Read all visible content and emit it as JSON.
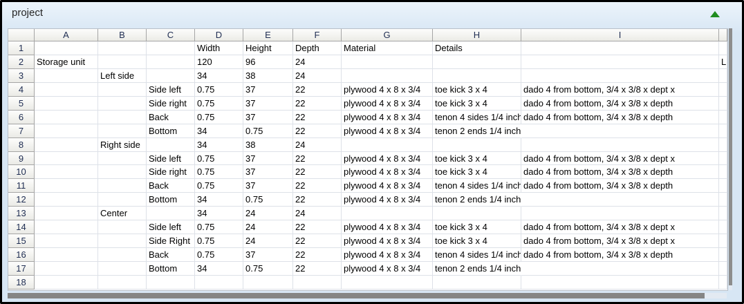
{
  "panel": {
    "title": "project",
    "collapse_icon": "triangle-up",
    "colors": {
      "panel_background": "#d7e6f4",
      "collapse_green": "#1f8c1f",
      "frame_black": "#000000",
      "grid_line": "#dde1e8",
      "header_border": "#a5a5a5",
      "header_text": "#1f2d52",
      "cell_text": "#000000",
      "scrollbar_thumb": "#858585"
    }
  },
  "spreadsheet": {
    "column_headers": [
      "A",
      "B",
      "C",
      "D",
      "E",
      "F",
      "G",
      "H",
      "I"
    ],
    "clipped_last_column": "J",
    "rows": [
      {
        "n": "1",
        "cells": [
          "",
          "",
          "",
          "Width",
          "Height",
          "Depth",
          "Material",
          "Details",
          "",
          ""
        ]
      },
      {
        "n": "2",
        "cells": [
          "Storage unit",
          "",
          "",
          "120",
          "96",
          "24",
          "",
          "",
          "",
          "L"
        ]
      },
      {
        "n": "3",
        "cells": [
          "",
          "Left side",
          "",
          "34",
          "38",
          "24",
          "",
          "",
          "",
          ""
        ]
      },
      {
        "n": "4",
        "cells": [
          "",
          "",
          "Side left",
          "0.75",
          "37",
          "22",
          "plywood 4 x 8 x 3/4",
          "toe kick 3 x 4",
          "dado 4 from bottom, 3/4 x 3/8 x dept x",
          ""
        ]
      },
      {
        "n": "5",
        "cells": [
          "",
          "",
          "Side right",
          "0.75",
          "37",
          "22",
          "plywood 4 x 8 x 3/4",
          "toe kick 3 x 4",
          "dado 4 from bottom, 3/4 x 3/8 x depth",
          ""
        ]
      },
      {
        "n": "6",
        "cells": [
          "",
          "",
          "Back",
          "0.75",
          "37",
          "22",
          "plywood 4 x 8 x 3/4",
          "tenon 4 sides 1/4 inch",
          "dado 4 from bottom, 3/4 x 3/8 x depth",
          ""
        ]
      },
      {
        "n": "7",
        "cells": [
          "",
          "",
          "Bottom",
          "34",
          "0.75",
          "22",
          "plywood 4 x 8 x 3/4",
          "tenon 2 ends 1/4 inch",
          "",
          ""
        ]
      },
      {
        "n": "8",
        "cells": [
          "",
          "Right side",
          "",
          "34",
          "38",
          "24",
          "",
          "",
          "",
          ""
        ]
      },
      {
        "n": "9",
        "cells": [
          "",
          "",
          "Side left",
          "0.75",
          "37",
          "22",
          "plywood 4 x 8 x 3/4",
          "toe kick 3 x 4",
          "dado 4 from bottom, 3/4 x 3/8 x dept x",
          ""
        ]
      },
      {
        "n": "10",
        "cells": [
          "",
          "",
          "Side right",
          "0.75",
          "37",
          "22",
          "plywood 4 x 8 x 3/4",
          "toe kick 3 x 4",
          "dado 4 from bottom, 3/4 x 3/8 x depth",
          ""
        ]
      },
      {
        "n": "11",
        "cells": [
          "",
          "",
          "Back",
          "0.75",
          "37",
          "22",
          "plywood 4 x 8 x 3/4",
          "tenon 4 sides 1/4 inch",
          "dado 4 from bottom, 3/4 x 3/8 x depth",
          ""
        ]
      },
      {
        "n": "12",
        "cells": [
          "",
          "",
          "Bottom",
          "34",
          "0.75",
          "22",
          "plywood 4 x 8 x 3/4",
          "tenon 2 ends 1/4 inch",
          "",
          ""
        ]
      },
      {
        "n": "13",
        "cells": [
          "",
          "Center",
          "",
          "34",
          "24",
          "24",
          "",
          "",
          "",
          ""
        ]
      },
      {
        "n": "14",
        "cells": [
          "",
          "",
          "Side left",
          "0.75",
          "24",
          "22",
          "plywood 4 x 8 x 3/4",
          "toe kick 3 x 4",
          "dado 4 from bottom, 3/4 x 3/8 x dept x",
          ""
        ]
      },
      {
        "n": "15",
        "cells": [
          "",
          "",
          "Side Right",
          "0.75",
          "24",
          "22",
          "plywood 4 x 8 x 3/4",
          "toe kick 3 x 4",
          "dado 4 from bottom, 3/4 x 3/8 x dept x",
          ""
        ]
      },
      {
        "n": "16",
        "cells": [
          "",
          "",
          "Back",
          "0.75",
          "37",
          "22",
          "plywood 4 x 8 x 3/4",
          "tenon 4 sides 1/4 inch",
          "dado 4 from bottom, 3/4 x 3/8 x depth",
          ""
        ]
      },
      {
        "n": "17",
        "cells": [
          "",
          "",
          "Bottom",
          "34",
          "0.75",
          "22",
          "plywood 4 x 8 x 3/4",
          "tenon 2 ends 1/4 inch",
          "",
          ""
        ]
      },
      {
        "n": "18",
        "cells": [
          "",
          "",
          "",
          "",
          "",
          "",
          "",
          "",
          "",
          ""
        ]
      }
    ]
  }
}
